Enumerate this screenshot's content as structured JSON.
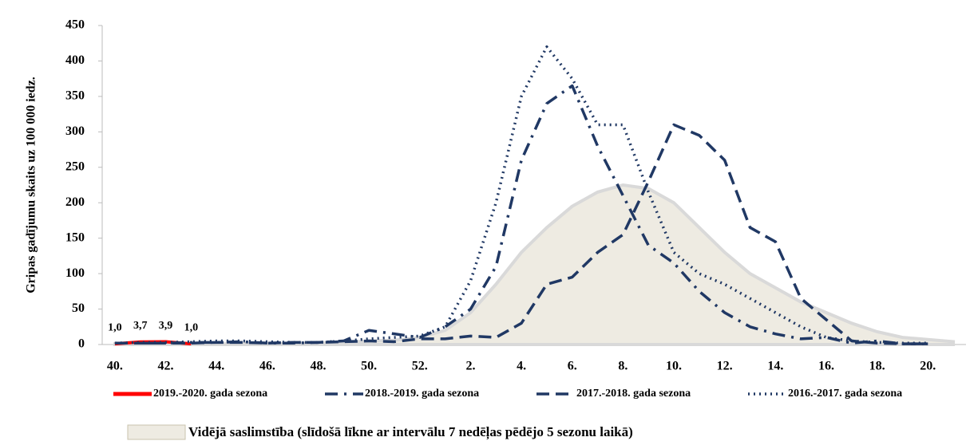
{
  "chart_data": {
    "type": "line",
    "y_label": "Gripas gadījumu skaits uz 100 000 iedz.",
    "categories": [
      "40.",
      null,
      "42.",
      null,
      "44.",
      null,
      "46.",
      null,
      "48.",
      null,
      "50.",
      null,
      "52.",
      null,
      "2.",
      null,
      "4.",
      null,
      "6.",
      null,
      "8.",
      null,
      "10.",
      null,
      "12.",
      null,
      "14.",
      null,
      "16.",
      null,
      "18.",
      null,
      "20.",
      null
    ],
    "ylim": [
      0,
      450
    ],
    "yticks": [
      0,
      50,
      100,
      150,
      200,
      250,
      300,
      350,
      400,
      450
    ],
    "grid": false,
    "series": [
      {
        "name": "Vidējā saslimstība (slīdošā līkne ar intervālu 7 nedēļas pēdējo 5 sezonu laikā)",
        "color": "#eeebe2",
        "style": "area",
        "values": [
          1,
          1,
          1,
          1,
          1,
          1,
          1,
          1,
          2,
          3,
          5,
          6,
          10,
          20,
          45,
          85,
          130,
          165,
          195,
          215,
          225,
          220,
          200,
          165,
          130,
          100,
          80,
          60,
          45,
          30,
          18,
          10,
          7,
          4
        ]
      },
      {
        "name": "2019.-2020. gada sezona",
        "color": "#ff0000",
        "style": "solid",
        "values": [
          1.0,
          3.7,
          3.9,
          1.0,
          null,
          null,
          null,
          null,
          null,
          null,
          null,
          null,
          null,
          null,
          null,
          null,
          null,
          null,
          null,
          null,
          null,
          null,
          null,
          null,
          null,
          null,
          null,
          null,
          null,
          null,
          null,
          null,
          null,
          null
        ],
        "value_labels": [
          "1,0",
          "3,7",
          "3,9",
          "1,0",
          null,
          null,
          null,
          null,
          null,
          null,
          null,
          null,
          null,
          null,
          null,
          null,
          null,
          null,
          null,
          null,
          null,
          null,
          null,
          null,
          null,
          null,
          null,
          null,
          null,
          null,
          null,
          null,
          null,
          null
        ]
      },
      {
        "name": "2018.-2019. gada sezona",
        "color": "#203864",
        "style": "dashdot",
        "values": [
          2,
          2,
          2,
          3,
          3,
          4,
          2,
          2,
          3,
          5,
          20,
          15,
          10,
          25,
          50,
          110,
          260,
          340,
          365,
          280,
          210,
          140,
          115,
          75,
          45,
          25,
          15,
          8,
          10,
          2,
          5,
          1,
          1,
          null
        ]
      },
      {
        "name": "2017.-2018. gada sezona",
        "color": "#203864",
        "style": "dash",
        "values": [
          2,
          2,
          2,
          2,
          3,
          3,
          2,
          3,
          3,
          4,
          5,
          4,
          8,
          8,
          12,
          10,
          30,
          85,
          95,
          130,
          155,
          230,
          310,
          295,
          260,
          165,
          145,
          65,
          35,
          5,
          2,
          1,
          1,
          null
        ]
      },
      {
        "name": "2016.-2017. gada sezona",
        "color": "#203864",
        "style": "dot",
        "values": [
          2,
          3,
          3,
          4,
          5,
          5,
          4,
          3,
          3,
          5,
          8,
          10,
          12,
          25,
          90,
          200,
          350,
          420,
          375,
          310,
          310,
          215,
          130,
          100,
          85,
          65,
          45,
          25,
          10,
          5,
          3,
          2,
          2,
          null
        ]
      }
    ]
  }
}
